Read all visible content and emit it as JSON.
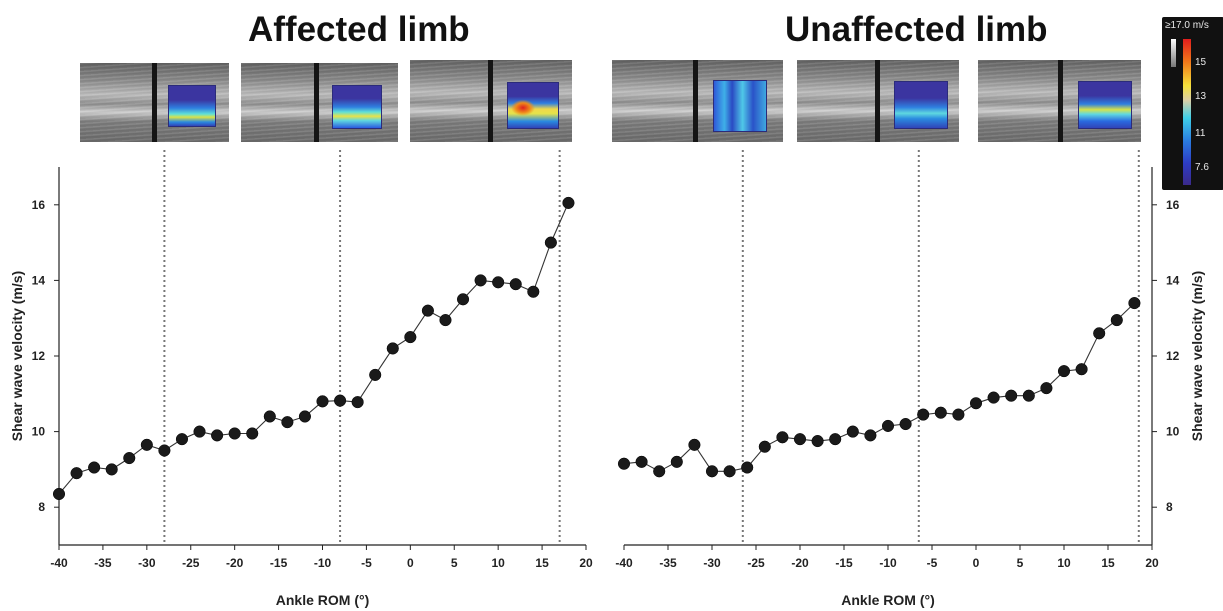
{
  "titles": {
    "left": "Affected limb",
    "right": "Unaffected limb"
  },
  "colorbar": {
    "title": "≥17.0 m/s",
    "ticks": [
      "15",
      "13",
      "11",
      "7.6"
    ]
  },
  "thumbnail_icons": [
    "ultrasound-elastography-image"
  ],
  "chart_data": [
    {
      "type": "line",
      "title": "Affected limb",
      "xlabel": "Ankle ROM (°)",
      "ylabel": "Shear wave velocity (m/s)",
      "xlim": [
        -40,
        20
      ],
      "ylim": [
        7,
        17
      ],
      "xticks": [
        -40,
        -35,
        -30,
        -25,
        -20,
        -15,
        -10,
        -5,
        0,
        5,
        10,
        15,
        20
      ],
      "yticks": [
        8,
        10,
        12,
        14,
        16
      ],
      "marker": "filled-circle",
      "color": "#1a1a1a",
      "reference_lines_x": [
        -28,
        -8,
        17
      ],
      "series": [
        {
          "x": [
            -40,
            -38,
            -36,
            -34,
            -32,
            -30,
            -28,
            -26,
            -24,
            -22,
            -20,
            -18,
            -16,
            -14,
            -12,
            -10,
            -8,
            -6,
            -4,
            -2,
            0,
            2,
            4,
            6,
            8,
            10,
            12,
            14,
            16,
            18
          ],
          "y": [
            8.35,
            8.9,
            9.05,
            9.0,
            9.3,
            9.65,
            9.5,
            9.8,
            10.0,
            9.9,
            9.95,
            9.95,
            10.4,
            10.25,
            10.4,
            10.8,
            10.82,
            10.78,
            11.5,
            12.2,
            12.5,
            13.2,
            12.95,
            13.5,
            14.0,
            13.95,
            13.9,
            13.7,
            15.0,
            16.05
          ]
        }
      ]
    },
    {
      "type": "line",
      "title": "Unaffected limb",
      "xlabel": "Ankle ROM (°)",
      "ylabel": "Shear wave velocity (m/s)",
      "xlim": [
        -40,
        20
      ],
      "ylim": [
        7,
        17
      ],
      "xticks": [
        -40,
        -35,
        -30,
        -25,
        -20,
        -15,
        -10,
        -5,
        0,
        5,
        10,
        15,
        20
      ],
      "yticks": [
        8,
        10,
        12,
        14,
        16
      ],
      "y_axis_side": "right",
      "marker": "filled-circle",
      "color": "#1a1a1a",
      "reference_lines_x": [
        -26.5,
        -6.5,
        18.5
      ],
      "series": [
        {
          "x": [
            -40,
            -38,
            -36,
            -34,
            -32,
            -30,
            -28,
            -26,
            -24,
            -22,
            -20,
            -18,
            -16,
            -14,
            -12,
            -10,
            -8,
            -6,
            -4,
            -2,
            0,
            2,
            4,
            6,
            8,
            10,
            12,
            14,
            16,
            18
          ],
          "y": [
            9.15,
            9.2,
            8.95,
            9.2,
            9.65,
            8.95,
            8.95,
            9.05,
            9.6,
            9.85,
            9.8,
            9.75,
            9.8,
            10.0,
            9.9,
            10.15,
            10.2,
            10.45,
            10.5,
            10.45,
            10.75,
            10.9,
            10.95,
            10.95,
            11.15,
            11.6,
            11.65,
            12.6,
            12.95,
            13.4
          ]
        }
      ]
    }
  ]
}
